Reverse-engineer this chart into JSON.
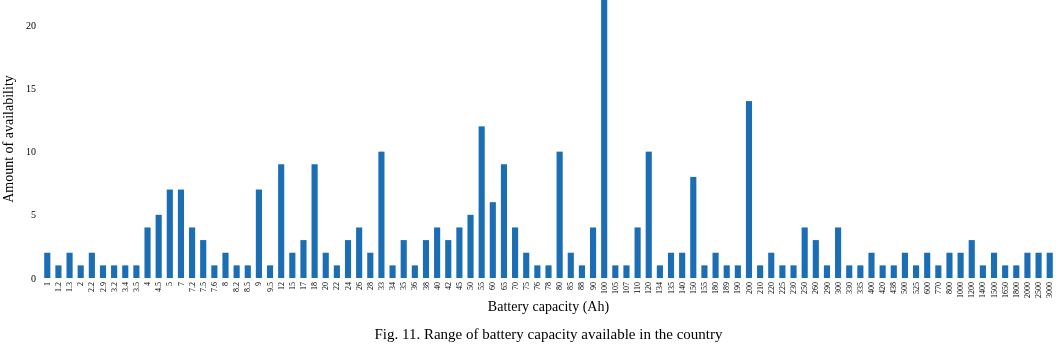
{
  "chart_data": {
    "type": "bar",
    "title": "Fig. 11. Range of battery capacity available in the country",
    "xlabel": "Battery capacity (Ah)",
    "ylabel": "Amount of  availability",
    "color": "#1b6db4",
    "categories": [
      "1",
      "1.2",
      "1.3",
      "2",
      "2.2",
      "2.9",
      "3.2",
      "3.4",
      "3.5",
      "4",
      "4.5",
      "5",
      "7",
      "7.2",
      "7.5",
      "7.6",
      "8",
      "8.2",
      "8.5",
      "9",
      "9.5",
      "12",
      "15",
      "17",
      "18",
      "20",
      "22",
      "24",
      "26",
      "28",
      "33",
      "34",
      "35",
      "36",
      "38",
      "40",
      "42",
      "45",
      "50",
      "55",
      "60",
      "65",
      "70",
      "75",
      "76",
      "78",
      "80",
      "85",
      "88",
      "90",
      "100",
      "105",
      "107",
      "110",
      "120",
      "134",
      "135",
      "140",
      "150",
      "155",
      "180",
      "189",
      "190",
      "200",
      "210",
      "220",
      "225",
      "230",
      "250",
      "260",
      "290",
      "300",
      "330",
      "335",
      "400",
      "420",
      "438",
      "500",
      "525",
      "600",
      "770",
      "800",
      "1000",
      "1200",
      "1400",
      "1500",
      "1650",
      "1800",
      "2000",
      "2500",
      "3000"
    ],
    "values": [
      2,
      1,
      2,
      1,
      2,
      1,
      1,
      1,
      1,
      4,
      5,
      7,
      7,
      4,
      3,
      1,
      2,
      1,
      1,
      7,
      1,
      9,
      2,
      3,
      9,
      2,
      1,
      3,
      4,
      2,
      10,
      1,
      3,
      1,
      3,
      4,
      3,
      4,
      5,
      12,
      6,
      9,
      4,
      2,
      1,
      1,
      10,
      2,
      1,
      4,
      22,
      1,
      1,
      4,
      10,
      1,
      2,
      2,
      8,
      1,
      2,
      1,
      1,
      14,
      1,
      2,
      1,
      1,
      4,
      3,
      1,
      4,
      1,
      1,
      2,
      1,
      1,
      2,
      1,
      2,
      1,
      2,
      2,
      3,
      1,
      2,
      1,
      1,
      2,
      2,
      2
    ],
    "ylim": [
      0,
      22
    ],
    "yticks": [
      0,
      5,
      10,
      15,
      20
    ],
    "grid": false
  }
}
